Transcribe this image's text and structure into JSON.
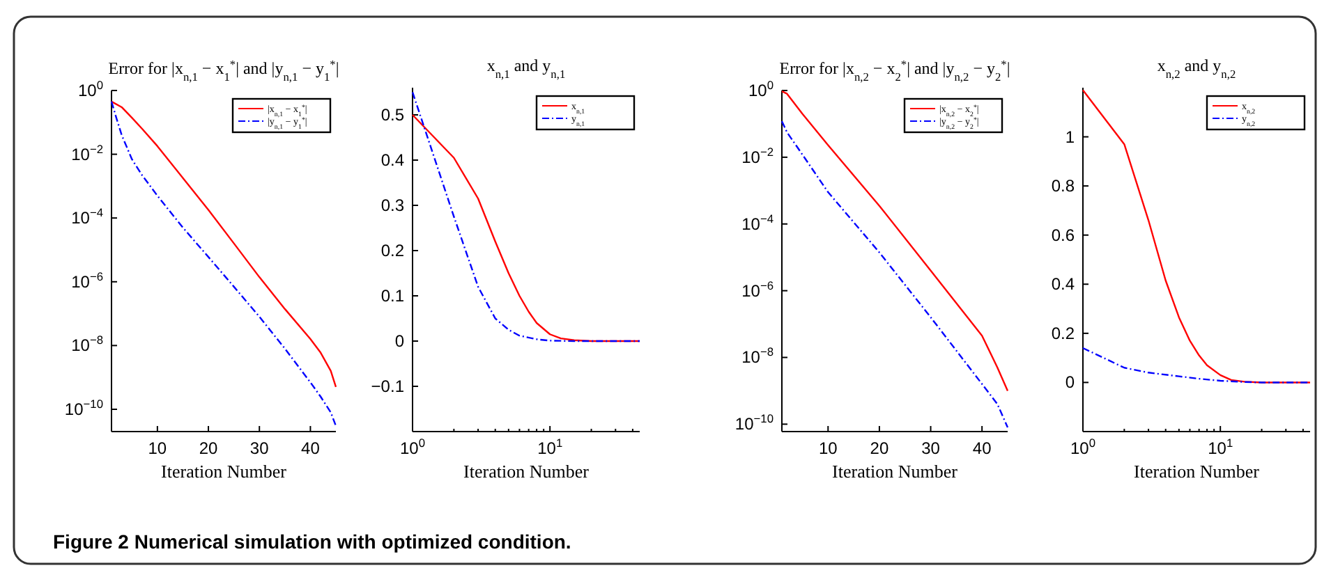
{
  "chart_data": [
    {
      "type": "line",
      "title": "Error for |x$_{n,1}$ − x$_{1}$$^{*}$| and |y$_{n,1}$ − y$_{1}$$^{*}$|",
      "xlabel": "Iteration Number",
      "log": "y",
      "legend": "top right",
      "xlim": [
        1,
        45
      ],
      "xticks": [
        10,
        20,
        30,
        40
      ],
      "ylim": [
        2e-11,
        1
      ],
      "yticks": [
        {
          "value": 1e-10,
          "label": "10$^{−10}$"
        },
        {
          "value": 1e-08,
          "label": "10$^{−8}$"
        },
        {
          "value": 1e-06,
          "label": "10$^{−6}$"
        },
        {
          "value": 0.0001,
          "label": "10$^{−4}$"
        },
        {
          "value": 0.01,
          "label": "10$^{−2}$"
        },
        {
          "value": 1,
          "label": "10$^{0}$"
        }
      ],
      "annotations": [
        "Figure 2  Numerical simulation with optimized condition."
      ],
      "series": [
        {
          "name": "|x$_{n,1}$ − x$_{1}$$^{*}$|",
          "color": "#ff0000",
          "line_style": "solid",
          "x": [
            1,
            3,
            5,
            7,
            10,
            15,
            20,
            25,
            30,
            35,
            40,
            42,
            44,
            45
          ],
          "values": [
            0.45,
            0.3,
            0.14,
            0.063,
            0.018,
            0.0018,
            0.00018,
            1.6e-05,
            1.4e-06,
            1.4e-07,
            1.6e-08,
            6e-09,
            1.6e-09,
            5e-10
          ]
        },
        {
          "name": "|y$_{n,1}$ − y$_{1}$$^{*}$|",
          "color": "#0000ff",
          "line_style": "dashed",
          "x": [
            1,
            2,
            3,
            5,
            7,
            10,
            15,
            20,
            25,
            30,
            35,
            40,
            42,
            44,
            45
          ],
          "values": [
            0.45,
            0.13,
            0.04,
            0.007,
            0.0022,
            0.0005,
            5e-05,
            6e-06,
            7e-07,
            8e-08,
            8e-09,
            7e-10,
            2.5e-10,
            8e-11,
            3e-11
          ]
        }
      ]
    },
    {
      "type": "line",
      "title": "x$_{n,1}$ and y$_{n,1}$",
      "xlabel": "Iteration Number",
      "log": "x",
      "legend": "top right",
      "xlim": [
        1,
        45
      ],
      "xticks": [
        {
          "value": 1,
          "label": "10$^{0}$"
        },
        {
          "value": 2,
          "label": null
        },
        {
          "value": 3,
          "label": null
        },
        {
          "value": 4,
          "label": null
        },
        {
          "value": 5,
          "label": null
        },
        {
          "value": 6,
          "label": null
        },
        {
          "value": 7,
          "label": null
        },
        {
          "value": 8,
          "label": null
        },
        {
          "value": 9,
          "label": null
        },
        {
          "value": 10,
          "label": "10$^{1}$"
        },
        {
          "value": 20,
          "label": null
        },
        {
          "value": 30,
          "label": null
        },
        {
          "value": 40,
          "label": null
        }
      ],
      "ylim": [
        -0.2,
        0.56
      ],
      "yticks": [
        {
          "value": -0.1,
          "label": "−0.1"
        },
        0,
        0.1,
        0.2,
        0.3,
        0.4,
        0.5
      ],
      "series": [
        {
          "name": "x$_{n,1}$",
          "color": "#ff0000",
          "line_style": "solid",
          "x": [
            1,
            2,
            3,
            4,
            5,
            6,
            7,
            8,
            10,
            12,
            15,
            20,
            45
          ],
          "values": [
            0.5,
            0.405,
            0.315,
            0.22,
            0.15,
            0.1,
            0.065,
            0.04,
            0.015,
            0.006,
            0.002,
            0,
            0
          ]
        },
        {
          "name": "y$_{n,1}$",
          "color": "#0000ff",
          "line_style": "dashed",
          "x": [
            1,
            2,
            3,
            4,
            5,
            6,
            8,
            10,
            15,
            45
          ],
          "values": [
            0.55,
            0.275,
            0.12,
            0.05,
            0.025,
            0.012,
            0.004,
            0.001,
            0,
            0
          ]
        }
      ]
    },
    {
      "type": "line",
      "title": "Error for |x$_{n,2}$ − x$_{2}$$^{*}$| and |y$_{n,2}$ − y$_{2}$$^{*}$|",
      "xlabel": "Iteration Number",
      "log": "y",
      "legend": "top right",
      "xlim": [
        1,
        45
      ],
      "xticks": [
        10,
        20,
        30,
        40
      ],
      "ylim": [
        6e-11,
        1
      ],
      "yticks": [
        {
          "value": 1e-10,
          "label": "10$^{−10}$"
        },
        {
          "value": 1e-08,
          "label": "10$^{−8}$"
        },
        {
          "value": 1e-06,
          "label": "10$^{−6}$"
        },
        {
          "value": 0.0001,
          "label": "10$^{−4}$"
        },
        {
          "value": 0.01,
          "label": "10$^{−2}$"
        },
        {
          "value": 1,
          "label": "10$^{0}$"
        }
      ],
      "series": [
        {
          "name": "|x$_{n,2}$ − x$_{2}$$^{*}$|",
          "color": "#ff0000",
          "line_style": "solid",
          "x": [
            1,
            2,
            5,
            10,
            20,
            30,
            40,
            43,
            45
          ],
          "values": [
            0.95,
            0.8,
            0.2,
            0.023,
            0.00035,
            4e-06,
            4.5e-08,
            5e-09,
            1e-09
          ]
        },
        {
          "name": "|y$_{n,2}$ − y$_{2}$$^{*}$|",
          "color": "#0000ff",
          "line_style": "dashed",
          "x": [
            1,
            2,
            5,
            10,
            20,
            30,
            40,
            43,
            45
          ],
          "values": [
            0.12,
            0.056,
            0.012,
            0.0009,
            1.4e-05,
            1.6e-07,
            1.6e-09,
            4e-10,
            8e-11
          ]
        }
      ]
    },
    {
      "type": "line",
      "title": "x$_{n,2}$ and y$_{n,2}$",
      "xlabel": "Iteration Number",
      "log": "x",
      "legend": "top right",
      "xlim": [
        1,
        45
      ],
      "xticks": [
        {
          "value": 1,
          "label": "10$^{0}$"
        },
        {
          "value": 2,
          "label": null
        },
        {
          "value": 3,
          "label": null
        },
        {
          "value": 4,
          "label": null
        },
        {
          "value": 5,
          "label": null
        },
        {
          "value": 6,
          "label": null
        },
        {
          "value": 7,
          "label": null
        },
        {
          "value": 8,
          "label": null
        },
        {
          "value": 9,
          "label": null
        },
        {
          "value": 10,
          "label": "10$^{1}$"
        },
        {
          "value": 20,
          "label": null
        },
        {
          "value": 30,
          "label": null
        },
        {
          "value": 40,
          "label": null
        }
      ],
      "ylim": [
        -0.2,
        1.2
      ],
      "yticks": [
        0,
        0.2,
        0.4,
        0.6,
        0.8,
        1
      ],
      "series": [
        {
          "name": "x$_{n,2}$",
          "color": "#ff0000",
          "line_style": "solid",
          "x": [
            1,
            2,
            3,
            4,
            5,
            6,
            7,
            8,
            10,
            12,
            15,
            20,
            45
          ],
          "values": [
            1.19,
            0.97,
            0.66,
            0.415,
            0.265,
            0.17,
            0.11,
            0.07,
            0.03,
            0.01,
            0.003,
            0,
            0
          ]
        },
        {
          "name": "y$_{n,2}$",
          "color": "#0000ff",
          "line_style": "dashed",
          "x": [
            1,
            2,
            3,
            5,
            7,
            10,
            15,
            20,
            45
          ],
          "values": [
            0.14,
            0.06,
            0.04,
            0.025,
            0.015,
            0.007,
            0.002,
            0,
            0
          ]
        }
      ]
    }
  ]
}
